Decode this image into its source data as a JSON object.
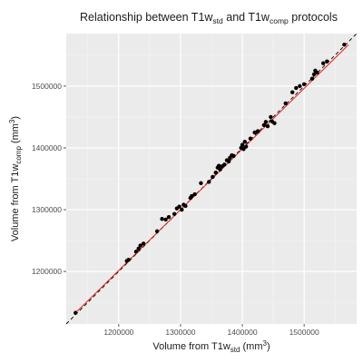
{
  "chart_data": {
    "type": "scatter",
    "title": {
      "prefix": "Relationship between T1w",
      "sub1": "std",
      "mid": " and T1w",
      "sub2": "comp",
      "suffix": " protocols"
    },
    "xlabel": {
      "prefix": "Volume from T1w",
      "sub": "std",
      "mid": " (mm",
      "sup": "3",
      "suffix": ")"
    },
    "ylabel": {
      "prefix": "Volume from T1w",
      "sub": "comp",
      "mid": " (mm",
      "sup": "3",
      "suffix": ")"
    },
    "xlim": [
      1115000,
      1585000
    ],
    "ylim": [
      1115000,
      1585000
    ],
    "x_ticks": [
      1200000,
      1300000,
      1400000,
      1500000
    ],
    "y_ticks": [
      1200000,
      1300000,
      1400000,
      1500000
    ],
    "x_tick_labels": [
      "1200000",
      "1300000",
      "1400000",
      "1500000"
    ],
    "y_tick_labels": [
      "1200000",
      "1300000",
      "1400000",
      "1500000"
    ],
    "grid": true,
    "background": "#ebebeb",
    "identity_line": {
      "style": "dashed",
      "color": "#000000",
      "slope": 1,
      "intercept": 0
    },
    "fit_line": {
      "style": "solid",
      "color": "#e8241c",
      "from": [
        1130000,
        1133000
      ],
      "to": [
        1572000,
        1567000
      ]
    },
    "points_color": "#000000",
    "points": [
      [
        1130000,
        1133000
      ],
      [
        1213000,
        1217000
      ],
      [
        1216000,
        1219000
      ],
      [
        1228000,
        1232000
      ],
      [
        1232000,
        1237000
      ],
      [
        1235000,
        1242000
      ],
      [
        1240000,
        1245000
      ],
      [
        1262000,
        1265000
      ],
      [
        1270000,
        1285000
      ],
      [
        1276000,
        1284000
      ],
      [
        1281000,
        1288000
      ],
      [
        1290000,
        1293000
      ],
      [
        1294000,
        1302000
      ],
      [
        1298000,
        1305000
      ],
      [
        1302000,
        1300000
      ],
      [
        1305000,
        1308000
      ],
      [
        1308000,
        1306000
      ],
      [
        1316000,
        1319000
      ],
      [
        1318000,
        1322000
      ],
      [
        1323000,
        1325000
      ],
      [
        1333000,
        1343000
      ],
      [
        1346000,
        1345000
      ],
      [
        1352000,
        1353000
      ],
      [
        1357000,
        1360000
      ],
      [
        1360000,
        1368000
      ],
      [
        1362000,
        1371000
      ],
      [
        1364000,
        1365000
      ],
      [
        1367000,
        1370000
      ],
      [
        1371000,
        1373000
      ],
      [
        1375000,
        1380000
      ],
      [
        1378000,
        1378000
      ],
      [
        1380000,
        1384000
      ],
      [
        1383000,
        1388000
      ],
      [
        1386000,
        1387000
      ],
      [
        1398000,
        1400000
      ],
      [
        1400000,
        1405000
      ],
      [
        1402000,
        1398000
      ],
      [
        1404000,
        1410000
      ],
      [
        1406000,
        1402000
      ],
      [
        1413000,
        1415000
      ],
      [
        1420000,
        1425000
      ],
      [
        1425000,
        1427000
      ],
      [
        1435000,
        1437000
      ],
      [
        1438000,
        1442000
      ],
      [
        1441000,
        1435000
      ],
      [
        1446000,
        1450000
      ],
      [
        1448000,
        1443000
      ],
      [
        1452000,
        1440000
      ],
      [
        1470000,
        1472000
      ],
      [
        1481000,
        1490000
      ],
      [
        1487000,
        1497000
      ],
      [
        1493000,
        1500000
      ],
      [
        1500000,
        1503000
      ],
      [
        1513000,
        1512000
      ],
      [
        1516000,
        1519000
      ],
      [
        1518000,
        1525000
      ],
      [
        1521000,
        1522000
      ],
      [
        1531000,
        1537000
      ],
      [
        1537000,
        1540000
      ],
      [
        1565000,
        1567000
      ]
    ]
  }
}
